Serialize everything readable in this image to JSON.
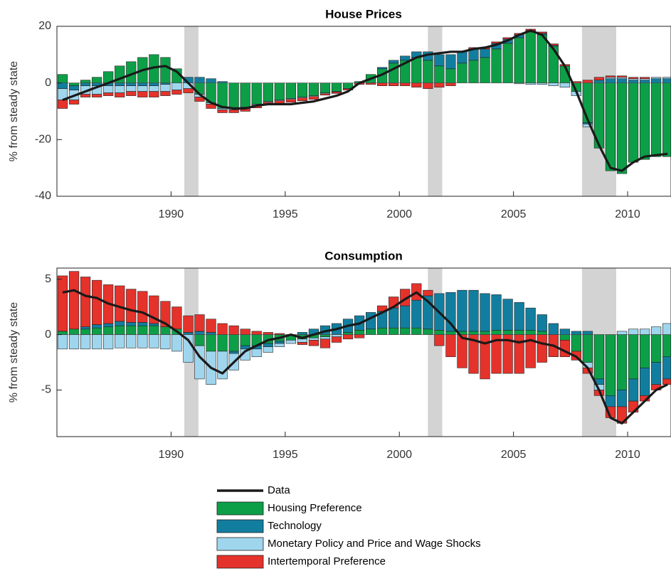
{
  "chart_data": [
    {
      "type": "bar",
      "title": "House Prices",
      "ylabel": "% from steady state",
      "x": [
        1985.25,
        1985.75,
        1986.25,
        1986.75,
        1987.25,
        1987.75,
        1988.25,
        1988.75,
        1989.25,
        1989.75,
        1990.25,
        1990.75,
        1991.25,
        1991.75,
        1992.25,
        1992.75,
        1993.25,
        1993.75,
        1994.25,
        1994.75,
        1995.25,
        1995.75,
        1996.25,
        1996.75,
        1997.25,
        1997.75,
        1998.25,
        1998.75,
        1999.25,
        1999.75,
        2000.25,
        2000.75,
        2001.25,
        2001.75,
        2002.25,
        2002.75,
        2003.25,
        2003.75,
        2004.25,
        2004.75,
        2005.25,
        2005.75,
        2006.25,
        2006.75,
        2007.25,
        2007.75,
        2008.25,
        2008.75,
        2009.25,
        2009.75,
        2010.25,
        2010.75,
        2011.25,
        2011.75
      ],
      "xlim": [
        1985,
        2011.9
      ],
      "xticks": [
        1990,
        1995,
        2000,
        2005,
        2010
      ],
      "ylim": [
        -40,
        20
      ],
      "yticks": [
        -40,
        -20,
        0,
        20
      ],
      "recessions": [
        [
          1990.58,
          1991.2
        ],
        [
          2001.25,
          2001.88
        ],
        [
          2008.0,
          2009.5
        ]
      ],
      "series": [
        {
          "name": "Housing Preference",
          "color": "#0c9f48",
          "values": [
            3,
            -1,
            1,
            2,
            4,
            6,
            7.5,
            9,
            10,
            9,
            5,
            0,
            -4,
            -7,
            -9,
            -9,
            -8.5,
            -7.5,
            -6.5,
            -6,
            -5.5,
            -5,
            -4.5,
            -3.5,
            -3,
            -2,
            0.5,
            3,
            5,
            7,
            8,
            9,
            8,
            6,
            5,
            7,
            8,
            9,
            12,
            14,
            16,
            18,
            17,
            13,
            6,
            -3,
            -14,
            -23,
            -31,
            -32,
            -28,
            -27,
            -26,
            -26
          ]
        },
        {
          "name": "Technology",
          "color": "#127e9f",
          "values": [
            -2,
            -1.5,
            -1,
            -1,
            -1,
            -1,
            -1,
            -1,
            -1,
            -0.5,
            0,
            2,
            2,
            1.5,
            0.5,
            0,
            0,
            0,
            0,
            0,
            0,
            0,
            0,
            0,
            0,
            0,
            0,
            0,
            0.5,
            1,
            1.5,
            2,
            3,
            4,
            5,
            4,
            4,
            3,
            2,
            1.5,
            1,
            0.5,
            0.5,
            0.3,
            0,
            0,
            -0.5,
            1,
            1.5,
            1.5,
            1,
            1,
            1.5,
            1.5
          ]
        },
        {
          "name": "Monetary Policy and Price and Wage Shocks",
          "color": "#9fd6ee",
          "values": [
            -4,
            -3.5,
            -3,
            -3,
            -2.5,
            -2.5,
            -2,
            -2,
            -2,
            -2.5,
            -2.5,
            -2,
            -1,
            -0.5,
            -0.5,
            -0.5,
            -0.5,
            -0.3,
            -0.3,
            -0.3,
            -0.3,
            -0.3,
            -0.3,
            -0.3,
            -0.2,
            0,
            0,
            0,
            0,
            0,
            0,
            0,
            0,
            0,
            0,
            0,
            0,
            0,
            0,
            0,
            -0.3,
            -0.5,
            -0.5,
            -1,
            -1.5,
            -1.5,
            -1,
            0,
            0.5,
            0.5,
            0.5,
            0.5,
            0.5,
            0.5
          ]
        },
        {
          "name": "Intertemporal Preference",
          "color": "#e5322b",
          "values": [
            -3,
            -1.5,
            -1,
            -1,
            -1,
            -1.5,
            -1.5,
            -2,
            -2,
            -1.5,
            -1.5,
            -1.5,
            -1.5,
            -1.5,
            -1,
            -1,
            -1,
            -1,
            -1,
            -1,
            -1,
            -1,
            -1,
            -0.5,
            -0.5,
            -0.5,
            -0.5,
            -0.5,
            -1,
            -1,
            -1,
            -1.5,
            -2,
            -1.5,
            -1,
            0,
            0.5,
            0.5,
            0.5,
            0.5,
            0.5,
            0.5,
            0.5,
            0.5,
            0.5,
            0.5,
            1,
            1,
            0.5,
            0.5,
            0.5,
            0.5,
            0,
            0
          ]
        }
      ],
      "line": {
        "name": "Data",
        "color": "#1a1a1a",
        "values": [
          -6,
          -4.5,
          -3,
          -1.5,
          0,
          1.5,
          3,
          4.5,
          5.5,
          6,
          4,
          0,
          -4,
          -7,
          -8.5,
          -9,
          -9,
          -8,
          -7.5,
          -7.5,
          -7.5,
          -7,
          -6.5,
          -5.5,
          -4.5,
          -3,
          0,
          1.5,
          3,
          5,
          7,
          9,
          10,
          10.5,
          11,
          11,
          12,
          12.5,
          13.5,
          15,
          17,
          18.5,
          17,
          12,
          6,
          -3,
          -13,
          -22,
          -30,
          -31,
          -28,
          -26,
          -25.5,
          -25
        ]
      }
    },
    {
      "type": "bar",
      "title": "Consumption",
      "ylabel": "% from steady state",
      "x": [
        1985.25,
        1985.75,
        1986.25,
        1986.75,
        1987.25,
        1987.75,
        1988.25,
        1988.75,
        1989.25,
        1989.75,
        1990.25,
        1990.75,
        1991.25,
        1991.75,
        1992.25,
        1992.75,
        1993.25,
        1993.75,
        1994.25,
        1994.75,
        1995.25,
        1995.75,
        1996.25,
        1996.75,
        1997.25,
        1997.75,
        1998.25,
        1998.75,
        1999.25,
        1999.75,
        2000.25,
        2000.75,
        2001.25,
        2001.75,
        2002.25,
        2002.75,
        2003.25,
        2003.75,
        2004.25,
        2004.75,
        2005.25,
        2005.75,
        2006.25,
        2006.75,
        2007.25,
        2007.75,
        2008.25,
        2008.75,
        2009.25,
        2009.75,
        2010.25,
        2010.75,
        2011.25,
        2011.75
      ],
      "xlim": [
        1985,
        2011.9
      ],
      "xticks": [
        1990,
        1995,
        2000,
        2005,
        2010
      ],
      "ylim": [
        -9.2,
        6
      ],
      "yticks": [
        -5,
        0,
        5
      ],
      "recessions": [
        [
          1990.58,
          1991.2
        ],
        [
          2001.25,
          2001.88
        ],
        [
          2008.0,
          2009.5
        ]
      ],
      "series": [
        {
          "color": "#0c9f48",
          "values": [
            0.3,
            0.5,
            0.5,
            0.6,
            0.7,
            0.8,
            0.8,
            0.8,
            0.8,
            0.7,
            0.5,
            0,
            -1,
            -1.5,
            -1.5,
            -1.5,
            -1,
            -1,
            -0.8,
            -0.6,
            -0.5,
            -0.4,
            -0.3,
            -0.2,
            0,
            0.2,
            0.4,
            0.5,
            0.6,
            0.6,
            0.6,
            0.6,
            0.5,
            0.4,
            0.3,
            0.3,
            0.3,
            0.3,
            0.4,
            0.4,
            0.4,
            0.4,
            0.3,
            0,
            -0.5,
            -1.5,
            -2.5,
            -4,
            -5.5,
            -5,
            -4,
            -3,
            -2.5,
            -2
          ]
        },
        {
          "color": "#127e9f",
          "values": [
            0,
            0,
            0.2,
            0.3,
            0.3,
            0.4,
            0.3,
            0.3,
            0.2,
            0,
            0,
            0.2,
            0.3,
            0.2,
            0,
            -0.2,
            -0.3,
            -0.3,
            -0.3,
            -0.2,
            0,
            0.2,
            0.5,
            0.8,
            1,
            1.2,
            1.3,
            1.5,
            1.5,
            1.8,
            2,
            2.5,
            3,
            3.3,
            3.5,
            3.7,
            3.7,
            3.4,
            3.2,
            2.8,
            2.5,
            2,
            1.5,
            1,
            0.5,
            0.3,
            0.3,
            -0.5,
            -1,
            -1.5,
            -2,
            -2.5,
            -2,
            -2
          ]
        },
        {
          "color": "#9fd6ee",
          "values": [
            -1.3,
            -1.3,
            -1.3,
            -1.3,
            -1.3,
            -1.2,
            -1.2,
            -1.2,
            -1.2,
            -1.3,
            -1.5,
            -2.5,
            -3,
            -3,
            -2.5,
            -1.5,
            -1,
            -0.7,
            -0.5,
            -0.3,
            -0.3,
            -0.3,
            -0.2,
            -0.2,
            -0.2,
            0,
            0,
            0,
            0,
            0,
            0,
            0,
            0,
            0,
            0,
            0,
            0,
            0,
            0,
            0,
            0,
            0,
            0,
            0,
            0,
            0,
            -0.5,
            -0.5,
            0,
            0.3,
            0.5,
            0.5,
            0.7,
            1
          ]
        },
        {
          "color": "#e5322b",
          "values": [
            5,
            5.2,
            4.5,
            4,
            3.5,
            3.2,
            3,
            2.8,
            2.5,
            2.3,
            2,
            1.5,
            1.5,
            1.2,
            1,
            0.8,
            0.5,
            0.3,
            0.2,
            0.1,
            0,
            -0.2,
            -0.5,
            -0.8,
            -0.5,
            -0.4,
            -0.3,
            0,
            0.5,
            1,
            1.5,
            1.5,
            0.5,
            -1,
            -2,
            -3,
            -3.5,
            -4,
            -3.5,
            -3.5,
            -3.5,
            -3,
            -2.5,
            -2,
            -1.5,
            -0.8,
            -0.5,
            -0.5,
            -1,
            -1.5,
            -1,
            -0.5,
            -0.5,
            -0.5
          ]
        }
      ],
      "line": {
        "color": "#1a1a1a",
        "values": [
          3.8,
          4,
          3.5,
          3.3,
          2.8,
          2.5,
          2.2,
          2,
          1.5,
          1,
          0.3,
          -0.5,
          -2,
          -3,
          -3.5,
          -2.5,
          -1.5,
          -1,
          -0.5,
          -0.3,
          0,
          -0.3,
          0,
          0.3,
          0.5,
          0.8,
          1,
          1.5,
          2,
          2.5,
          3.2,
          3.8,
          3,
          2,
          1,
          -0.3,
          -0.5,
          -0.8,
          -0.5,
          -0.5,
          -0.7,
          -0.5,
          -0.8,
          -1,
          -1.5,
          -2,
          -3,
          -5,
          -7.5,
          -8,
          -7,
          -6,
          -5,
          -4.5
        ]
      }
    }
  ]
}
